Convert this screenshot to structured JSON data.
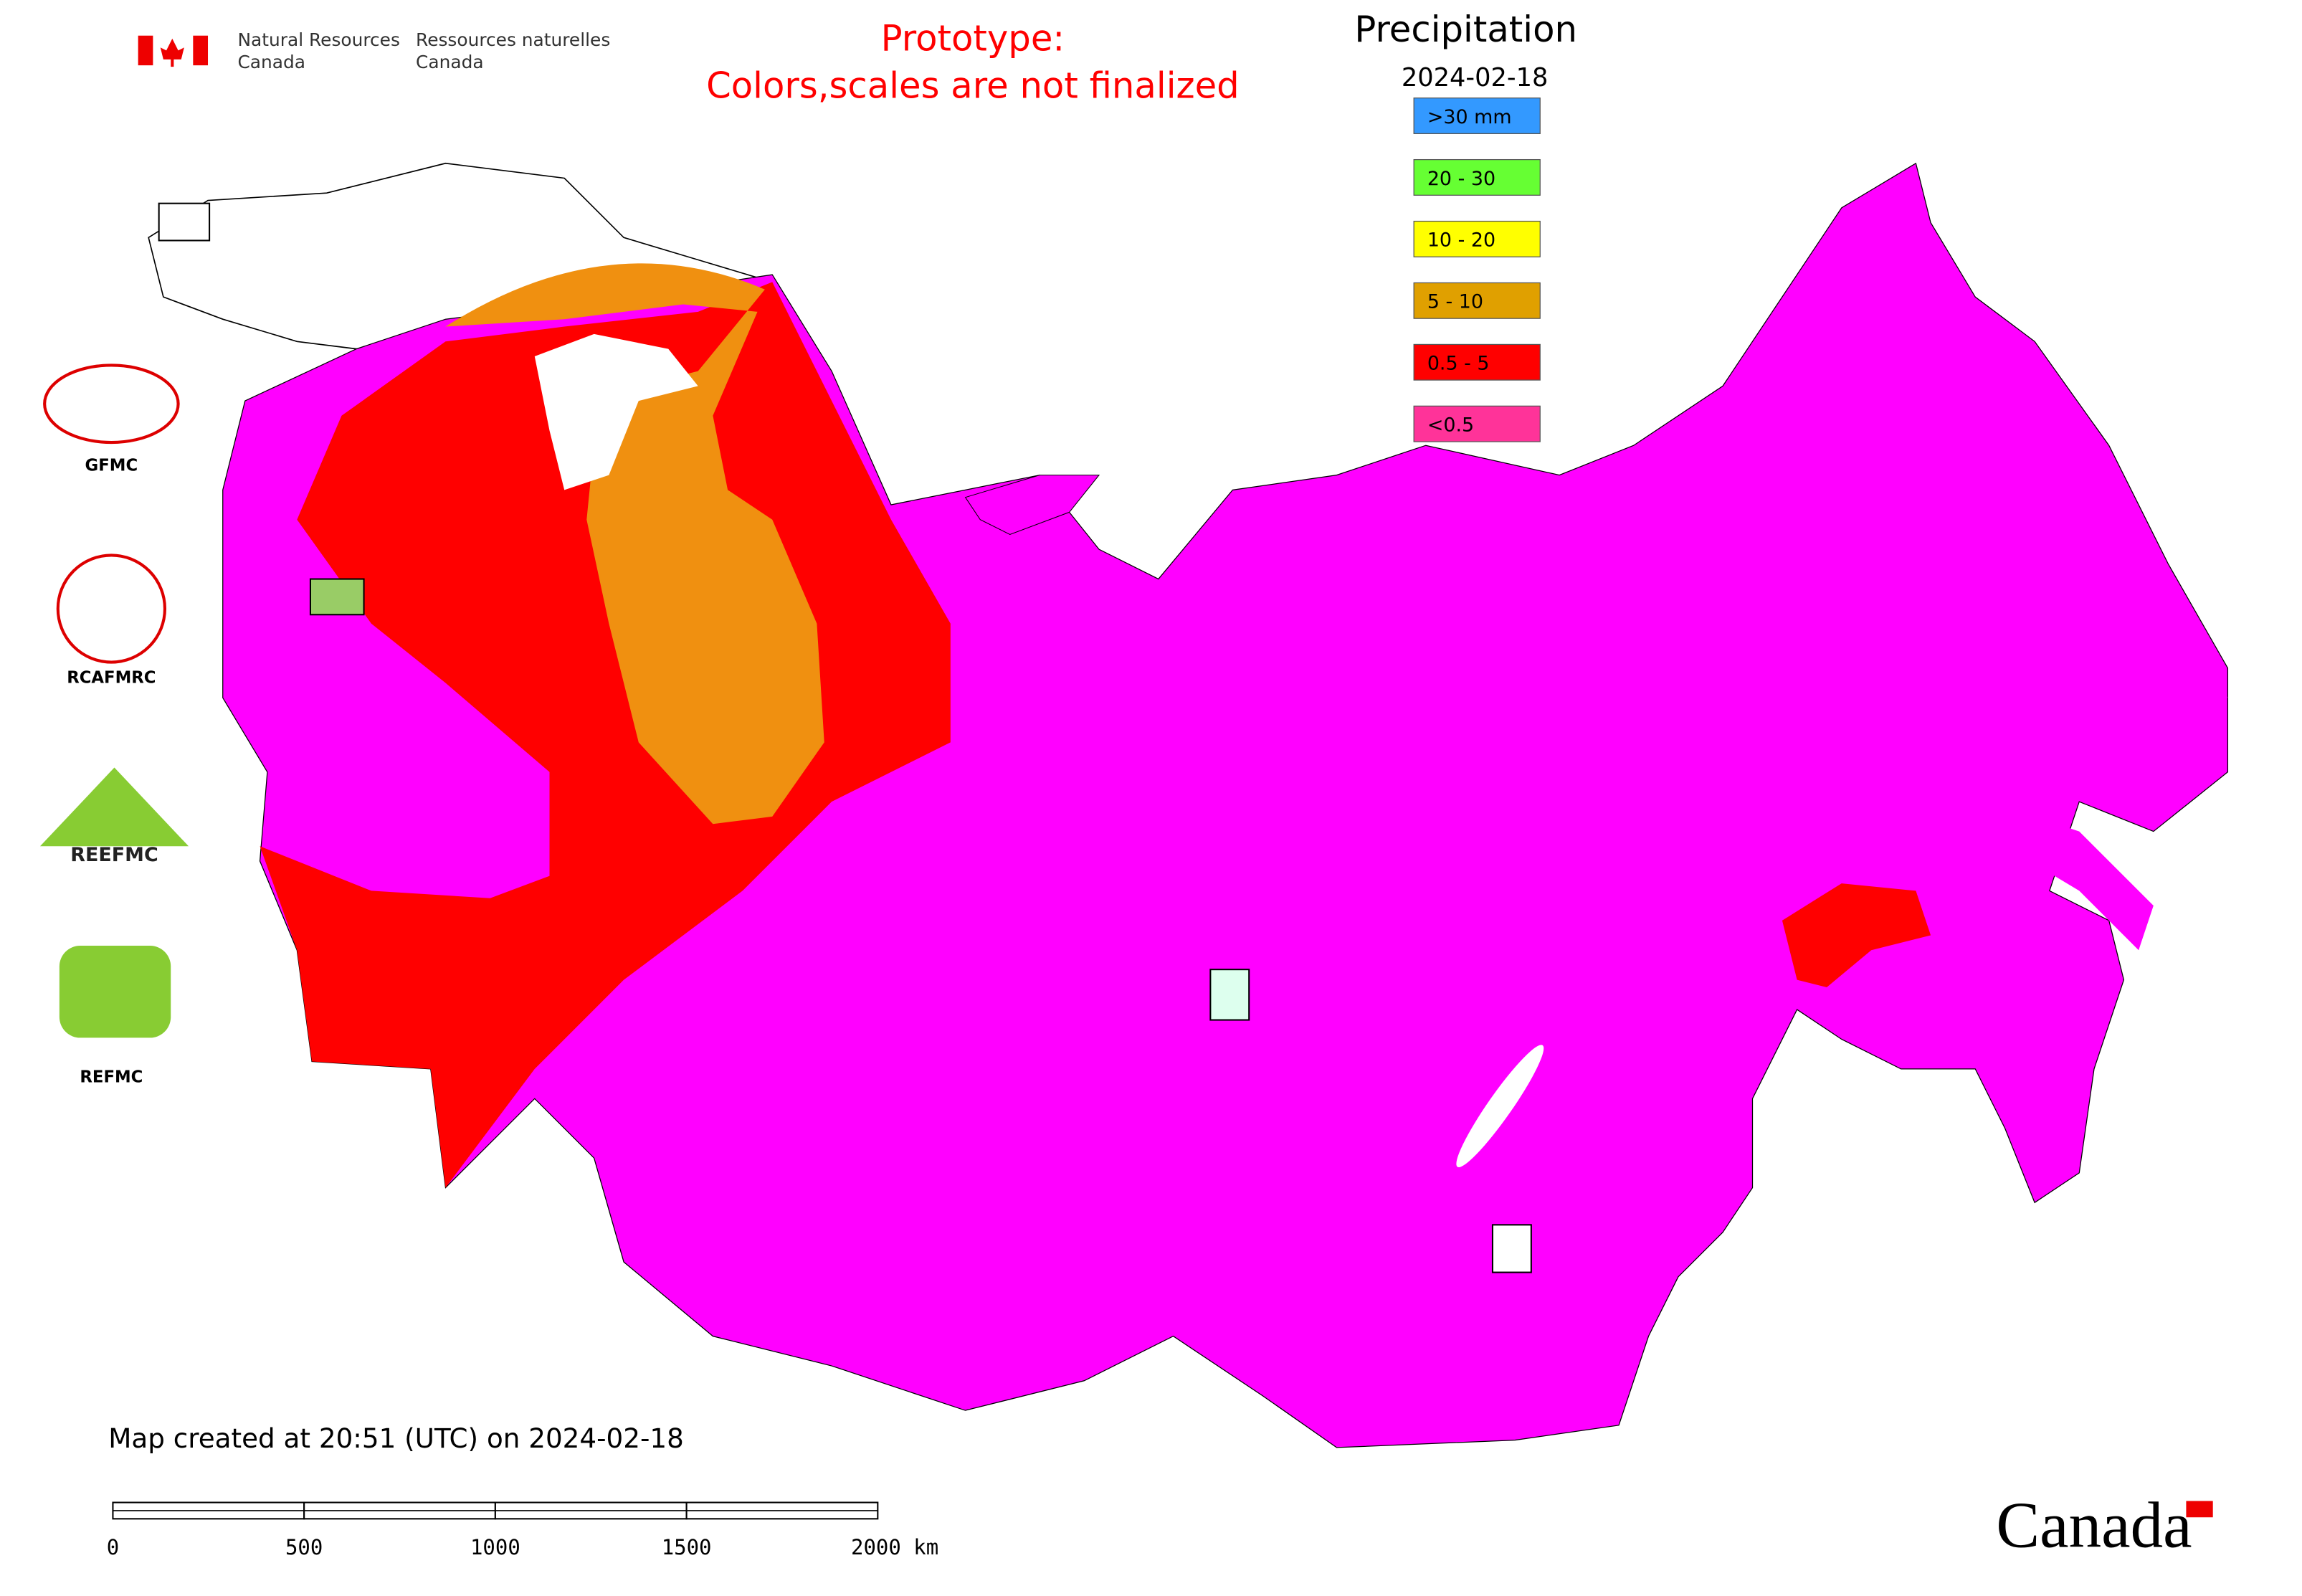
{
  "header": {
    "agency_en": [
      "Natural Resources",
      "Canada"
    ],
    "agency_fr": [
      "Ressources naturelles",
      "Canada"
    ],
    "notice": [
      "Prototype:",
      "Colors,scales are not finalized"
    ]
  },
  "legend": {
    "title": "Precipitation",
    "date": "2024-02-18",
    "items": [
      {
        "label": ">30 mm",
        "color": "#3399ff"
      },
      {
        "label": "20 - 30",
        "color": "#66ff33"
      },
      {
        "label": "10 - 20",
        "color": "#ffff00"
      },
      {
        "label": "5 - 10",
        "color": "#e0a000"
      },
      {
        "label": "0.5 - 5",
        "color": "#ff0000"
      },
      {
        "label": "<0.5",
        "color": "#ff3399"
      }
    ]
  },
  "logos": [
    "GFMC",
    "RCAFMRC",
    "REEFMC",
    "REFMC"
  ],
  "footer": {
    "created": "Map created at 20:51 (UTC) on 2024-02-18",
    "scale_labels": [
      "0",
      "500",
      "1000",
      "1500",
      "2000 km"
    ],
    "wordmark": "Canada"
  }
}
